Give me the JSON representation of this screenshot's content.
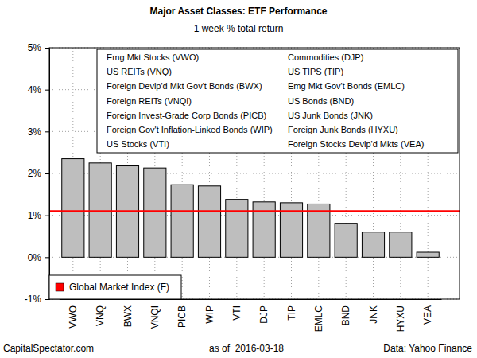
{
  "chart_data": {
    "type": "bar",
    "title": "Major Asset Classes: ETF Performance",
    "subtitle": "1 week % total return",
    "categories": [
      "VWO",
      "VNQ",
      "BWX",
      "VNQI",
      "PICB",
      "WIP",
      "VTI",
      "DJP",
      "TIP",
      "EMLC",
      "BND",
      "JNK",
      "HYXU",
      "VEA"
    ],
    "values": [
      2.35,
      2.25,
      2.18,
      2.13,
      1.73,
      1.7,
      1.38,
      1.32,
      1.3,
      1.27,
      0.81,
      0.6,
      0.6,
      0.12
    ],
    "color": "#bebebe",
    "ylim": [
      -1,
      5
    ],
    "yticks": [
      {
        "value": -1,
        "label": "-1%"
      },
      {
        "value": 0,
        "label": "0%"
      },
      {
        "value": 1,
        "label": "1%"
      },
      {
        "value": 2,
        "label": "2%"
      },
      {
        "value": 3,
        "label": "3%"
      },
      {
        "value": 4,
        "label": "4%"
      },
      {
        "value": 5,
        "label": "5%"
      }
    ],
    "grid": true,
    "legend": "bottom-left",
    "benchmark": {
      "name": "Global Market Index (F)",
      "value": 1.1,
      "color": "#ff0000"
    },
    "annotations": [
      "Emg Mkt Stocks (VWO)",
      "US REITs (VNQ)",
      "Foreign Devlp'd Mkt Gov't Bonds (BWX)",
      "Foreign REITs (VNQI)",
      "Foreign Invest-Grade Corp Bonds (PICB)",
      "Foreign Gov't Inflation-Linked Bonds (WIP)",
      "US Stocks (VTI)",
      "Commodities (DJP)",
      "US TIPS (TIP)",
      "Emg Mkt Gov't Bonds (EMLC)",
      "US Bonds (BND)",
      "US Junk Bonds (JNK)",
      "Foreign Junk Bonds (HYXU)",
      "Foreign Stocks Devlp'd Mkts (VEA)"
    ],
    "footer": {
      "left": "CapitalSpectator.com",
      "center": "as of  2016-03-18",
      "right": "Data: Yahoo Finance"
    }
  }
}
